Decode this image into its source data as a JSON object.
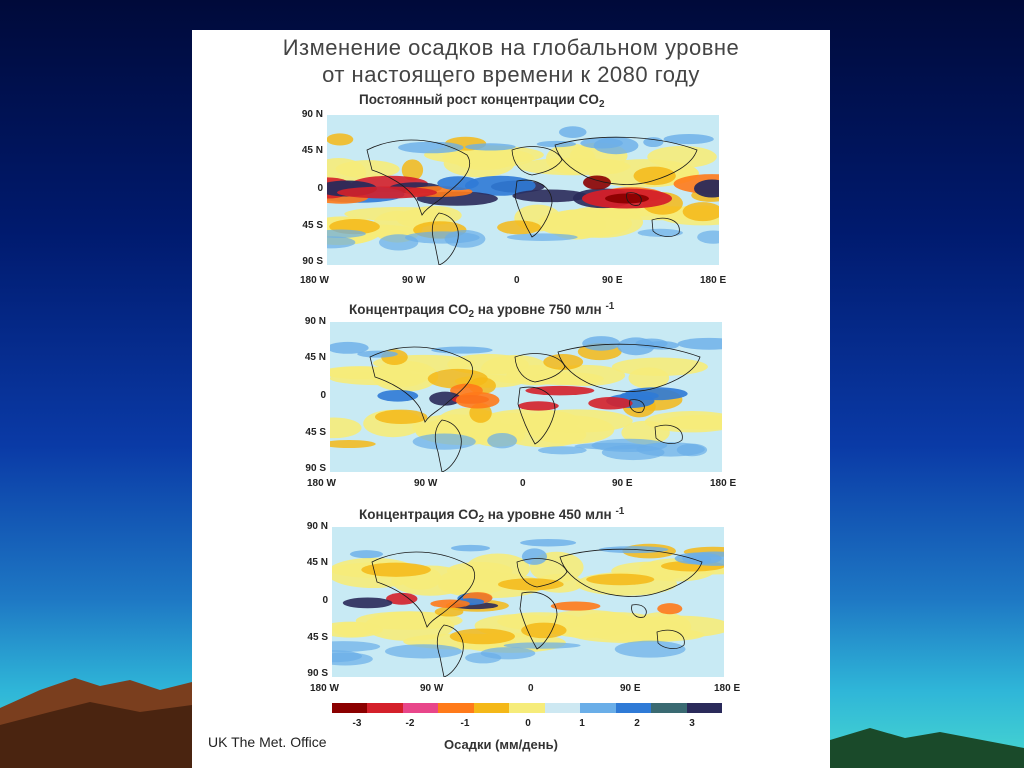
{
  "title_lines": [
    "Изменение осадков на глобальном уровне",
    "от настоящего времени к 2080 году"
  ],
  "panels": [
    {
      "title": "Постоянный рост концентрации CO",
      "sub": "2",
      "sup": "",
      "intensity": "high"
    },
    {
      "title": "Концентрация CO",
      "sub": "2",
      "title_tail": " на уровне 750 млн ",
      "sup": "-1",
      "intensity": "medium"
    },
    {
      "title": "Концентрация CO",
      "sub": "2",
      "title_tail": " на уровне 450 млн ",
      "sup": "-1",
      "intensity": "low"
    }
  ],
  "lat_labels": [
    "90 N",
    "45 N",
    "0",
    "45 S",
    "90 S"
  ],
  "lon_labels": [
    "180 W",
    "90 W",
    "0",
    "90 E",
    "180 E"
  ],
  "legend": {
    "colors": [
      "#8b0000",
      "#d4202a",
      "#e8468a",
      "#ff7a1a",
      "#f4b818",
      "#f6ec7a",
      "#cde8f2",
      "#6aaee8",
      "#2f7ad6",
      "#3a6a72",
      "#2a2a5a"
    ],
    "ticks": [
      "-3",
      "-2",
      "-1",
      "0",
      "1",
      "2",
      "3"
    ],
    "label": "Осадки (мм/день)"
  },
  "credit": "UK The Met. Office"
}
